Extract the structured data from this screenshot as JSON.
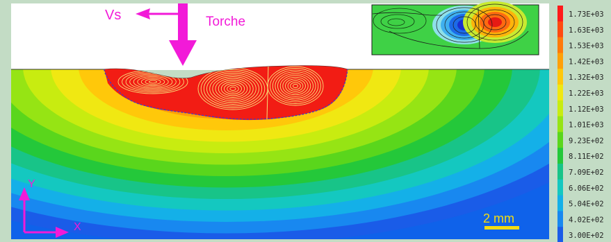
{
  "annotations": {
    "speed_label": "Vs",
    "torch_label": "Torche",
    "y_axis_label": "Y",
    "x_axis_label": "X",
    "scale_label": "2 mm"
  },
  "colorbar": {
    "values": [
      "1.73E+03",
      "1.63E+03",
      "1.53E+03",
      "1.42E+03",
      "1.32E+03",
      "1.22E+03",
      "1.12E+03",
      "1.01E+03",
      "9.23E+02",
      "8.11E+02",
      "7.09E+02",
      "6.06E+02",
      "5.04E+02",
      "4.02E+02",
      "3.00E+02"
    ],
    "colors": [
      "#ff1a1a",
      "#ff4a10",
      "#ff7a0a",
      "#ffa008",
      "#ffc80a",
      "#f0e812",
      "#c8ec10",
      "#96e414",
      "#5ad61c",
      "#24c83a",
      "#18c488",
      "#14c8c0",
      "#14b0e8",
      "#1888f0",
      "#1a5ce8"
    ]
  },
  "colors": {
    "melt_pool": "#f21c14",
    "arrow": "#f21ad8",
    "axes": "#f21ad8",
    "scale_bar": "#f4dc10",
    "background": "#c3dcc5"
  }
}
